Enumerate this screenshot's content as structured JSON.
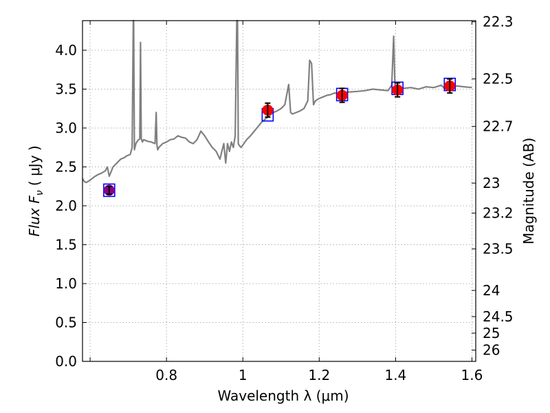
{
  "chart_data": {
    "type": "scatter",
    "xlabel": "Wavelength  λ (μm)",
    "ylabel": "Flux  F",
    "ylabel_sub": "ν",
    "ylabel_unit": "  ( μJy )",
    "y2label": "Magnitude (AB)",
    "xlim": [
      0.58,
      1.61
    ],
    "ylim": [
      0.0,
      4.38
    ],
    "grid": true,
    "x_ticks": [
      {
        "value": 0.6,
        "label": ""
      },
      {
        "value": 0.8,
        "label": "0.8"
      },
      {
        "value": 1.0,
        "label": "1"
      },
      {
        "value": 1.2,
        "label": "1.2"
      },
      {
        "value": 1.4,
        "label": "1.4"
      },
      {
        "value": 1.6,
        "label": "1.6"
      }
    ],
    "y_ticks": [
      {
        "value": 0.0,
        "label": "0.0"
      },
      {
        "value": 0.5,
        "label": "0.5"
      },
      {
        "value": 1.0,
        "label": "1.0"
      },
      {
        "value": 1.5,
        "label": "1.5"
      },
      {
        "value": 2.0,
        "label": "2.0"
      },
      {
        "value": 2.5,
        "label": "2.5"
      },
      {
        "value": 3.0,
        "label": "3.0"
      },
      {
        "value": 3.5,
        "label": "3.5"
      },
      {
        "value": 4.0,
        "label": "4.0"
      }
    ],
    "magnitude_ticks": [
      {
        "mag": 22.3,
        "label": "22.3"
      },
      {
        "mag": 22.5,
        "label": "22.5"
      },
      {
        "mag": 22.7,
        "label": "22.7"
      },
      {
        "mag": 23.0,
        "label": "23"
      },
      {
        "mag": 23.2,
        "label": "23.2"
      },
      {
        "mag": 23.5,
        "label": "23.5"
      },
      {
        "mag": 24.0,
        "label": "24"
      },
      {
        "mag": 24.5,
        "label": "24.5"
      },
      {
        "mag": 25.0,
        "label": "25"
      },
      {
        "mag": 26.0,
        "label": "26"
      }
    ],
    "colors": {
      "template": "#808080",
      "observed": "#ff0000",
      "model_box": "#0000ff",
      "errorbar": "#000000",
      "grid": "#b0b0b0"
    },
    "model_template": {
      "x": [
        0.58,
        0.585,
        0.59,
        0.6,
        0.61,
        0.62,
        0.63,
        0.64,
        0.645,
        0.65,
        0.655,
        0.66,
        0.67,
        0.68,
        0.69,
        0.695,
        0.7,
        0.705,
        0.71,
        0.713,
        0.714,
        0.716,
        0.718,
        0.72,
        0.725,
        0.73,
        0.732,
        0.734,
        0.737,
        0.74,
        0.75,
        0.76,
        0.77,
        0.773,
        0.775,
        0.777,
        0.78,
        0.79,
        0.8,
        0.81,
        0.82,
        0.83,
        0.84,
        0.85,
        0.86,
        0.87,
        0.88,
        0.89,
        0.9,
        0.91,
        0.92,
        0.93,
        0.94,
        0.95,
        0.955,
        0.96,
        0.965,
        0.97,
        0.975,
        0.98,
        0.984,
        0.986,
        0.988,
        0.99,
        0.995,
        1.0,
        1.01,
        1.02,
        1.03,
        1.04,
        1.05,
        1.06,
        1.07,
        1.08,
        1.09,
        1.1,
        1.11,
        1.12,
        1.125,
        1.13,
        1.14,
        1.15,
        1.16,
        1.17,
        1.175,
        1.18,
        1.185,
        1.19,
        1.2,
        1.21,
        1.22,
        1.23,
        1.24,
        1.25,
        1.27,
        1.3,
        1.32,
        1.34,
        1.36,
        1.38,
        1.39,
        1.395,
        1.398,
        1.4,
        1.402,
        1.405,
        1.41,
        1.42,
        1.44,
        1.46,
        1.48,
        1.5,
        1.52,
        1.53,
        1.54,
        1.56,
        1.58,
        1.6
      ],
      "y": [
        2.35,
        2.31,
        2.3,
        2.33,
        2.37,
        2.4,
        2.42,
        2.45,
        2.5,
        2.38,
        2.44,
        2.5,
        2.55,
        2.6,
        2.62,
        2.64,
        2.65,
        2.66,
        2.75,
        4.38,
        4.38,
        2.72,
        2.76,
        2.8,
        2.84,
        2.86,
        4.1,
        2.86,
        2.82,
        2.85,
        2.83,
        2.82,
        2.8,
        3.2,
        2.78,
        2.72,
        2.75,
        2.8,
        2.82,
        2.85,
        2.86,
        2.9,
        2.88,
        2.87,
        2.82,
        2.8,
        2.85,
        2.96,
        2.9,
        2.82,
        2.75,
        2.7,
        2.6,
        2.8,
        2.55,
        2.8,
        2.7,
        2.82,
        2.75,
        2.9,
        4.38,
        4.38,
        2.8,
        2.78,
        2.75,
        2.78,
        2.85,
        2.9,
        2.96,
        3.02,
        3.08,
        3.12,
        3.16,
        3.2,
        3.22,
        3.25,
        3.3,
        3.56,
        3.2,
        3.18,
        3.2,
        3.22,
        3.25,
        3.35,
        3.87,
        3.83,
        3.3,
        3.35,
        3.38,
        3.4,
        3.42,
        3.43,
        3.45,
        3.44,
        3.46,
        3.47,
        3.48,
        3.5,
        3.49,
        3.48,
        3.55,
        4.18,
        3.6,
        3.5,
        3.48,
        3.49,
        3.5,
        3.51,
        3.52,
        3.5,
        3.53,
        3.52,
        3.55,
        3.5,
        3.52,
        3.54,
        3.53,
        3.52
      ]
    },
    "observed_points": [
      {
        "x": 0.65,
        "y": 2.2,
        "err": 0.05,
        "color": "#8a008a"
      },
      {
        "x": 1.065,
        "y": 3.23,
        "err": 0.09,
        "color": "#ff0000"
      },
      {
        "x": 1.26,
        "y": 3.42,
        "err": 0.09,
        "color": "#ff0000"
      },
      {
        "x": 1.405,
        "y": 3.49,
        "err": 0.09,
        "color": "#ff0000"
      },
      {
        "x": 1.542,
        "y": 3.54,
        "err": 0.09,
        "color": "#ff0000"
      }
    ],
    "model_points": [
      {
        "x": 0.65,
        "y": 2.2
      },
      {
        "x": 1.065,
        "y": 3.17
      },
      {
        "x": 1.26,
        "y": 3.43
      },
      {
        "x": 1.405,
        "y": 3.51
      },
      {
        "x": 1.542,
        "y": 3.56
      }
    ]
  }
}
